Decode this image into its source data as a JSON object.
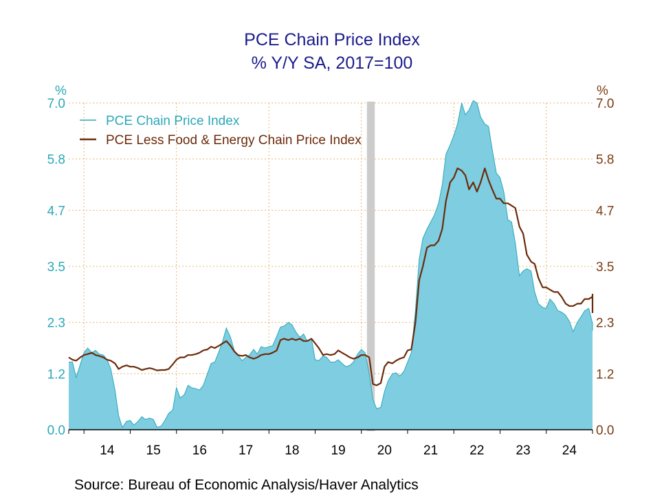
{
  "title": "PCE Chain Price Index",
  "subtitle": "% Y/Y   SA, 2017=100",
  "source": "Source:  Bureau of Economic Analysis/Haver Analytics",
  "colors": {
    "pce_fill": "#7ecde0",
    "pce_line": "#2aa7b8",
    "core_line": "#6b2a0a",
    "grid": "#e8b46a",
    "recession": "#cccccc",
    "left_axis_text": "#2aa7b8",
    "right_axis_text": "#7a3b12",
    "title": "#1a1a8c"
  },
  "chart_data": {
    "type": "area",
    "title": "PCE Chain Price Index",
    "subtitle": "% Y/Y   SA, 2017=100",
    "y_unit_left": "%",
    "y_unit_right": "%",
    "ylim": [
      0,
      7.0
    ],
    "yticks": [
      "0.0",
      "1.2",
      "2.3",
      "3.5",
      "4.7",
      "5.8",
      "7.0"
    ],
    "xlim": [
      2013.67,
      2025.0
    ],
    "xticks": [
      {
        "label": "14",
        "x": 2014.5
      },
      {
        "label": "15",
        "x": 2015.5
      },
      {
        "label": "16",
        "x": 2016.5
      },
      {
        "label": "17",
        "x": 2017.5
      },
      {
        "label": "18",
        "x": 2018.5
      },
      {
        "label": "19",
        "x": 2019.5
      },
      {
        "label": "20",
        "x": 2020.5
      },
      {
        "label": "21",
        "x": 2021.5
      },
      {
        "label": "22",
        "x": 2022.5
      },
      {
        "label": "23",
        "x": 2023.5
      },
      {
        "label": "24",
        "x": 2024.5
      }
    ],
    "recession": {
      "start": 2020.12,
      "end": 2020.29
    },
    "legend_position": "top-left",
    "grid": true,
    "series": [
      {
        "name": "PCE Chain Price Index",
        "style": "area",
        "points": [
          [
            2013.67,
            1.45
          ],
          [
            2013.75,
            1.45
          ],
          [
            2013.83,
            1.12
          ],
          [
            2013.92,
            1.4
          ],
          [
            2014.0,
            1.65
          ],
          [
            2014.08,
            1.75
          ],
          [
            2014.17,
            1.65
          ],
          [
            2014.25,
            1.7
          ],
          [
            2014.33,
            1.62
          ],
          [
            2014.42,
            1.6
          ],
          [
            2014.5,
            1.5
          ],
          [
            2014.58,
            1.3
          ],
          [
            2014.67,
            0.85
          ],
          [
            2014.75,
            0.3
          ],
          [
            2014.83,
            0.05
          ],
          [
            2014.92,
            0.18
          ],
          [
            2015.0,
            0.2
          ],
          [
            2015.08,
            0.1
          ],
          [
            2015.17,
            0.18
          ],
          [
            2015.25,
            0.28
          ],
          [
            2015.33,
            0.22
          ],
          [
            2015.42,
            0.25
          ],
          [
            2015.5,
            0.22
          ],
          [
            2015.58,
            0.05
          ],
          [
            2015.67,
            0.08
          ],
          [
            2015.75,
            0.2
          ],
          [
            2015.83,
            0.35
          ],
          [
            2015.92,
            0.42
          ],
          [
            2016.0,
            0.9
          ],
          [
            2016.08,
            0.68
          ],
          [
            2016.17,
            0.75
          ],
          [
            2016.25,
            0.95
          ],
          [
            2016.33,
            0.9
          ],
          [
            2016.42,
            0.88
          ],
          [
            2016.5,
            0.85
          ],
          [
            2016.58,
            0.95
          ],
          [
            2016.67,
            1.2
          ],
          [
            2016.75,
            1.42
          ],
          [
            2016.83,
            1.45
          ],
          [
            2016.92,
            1.68
          ],
          [
            2017.0,
            1.9
          ],
          [
            2017.08,
            2.18
          ],
          [
            2017.17,
            1.98
          ],
          [
            2017.25,
            1.7
          ],
          [
            2017.33,
            1.6
          ],
          [
            2017.42,
            1.48
          ],
          [
            2017.5,
            1.55
          ],
          [
            2017.58,
            1.6
          ],
          [
            2017.67,
            1.72
          ],
          [
            2017.75,
            1.62
          ],
          [
            2017.83,
            1.78
          ],
          [
            2017.92,
            1.75
          ],
          [
            2018.0,
            1.78
          ],
          [
            2018.08,
            1.8
          ],
          [
            2018.17,
            2.0
          ],
          [
            2018.25,
            2.2
          ],
          [
            2018.33,
            2.22
          ],
          [
            2018.42,
            2.3
          ],
          [
            2018.5,
            2.25
          ],
          [
            2018.58,
            2.1
          ],
          [
            2018.67,
            1.98
          ],
          [
            2018.75,
            2.05
          ],
          [
            2018.83,
            1.9
          ],
          [
            2018.92,
            1.95
          ],
          [
            2019.0,
            1.5
          ],
          [
            2019.08,
            1.48
          ],
          [
            2019.17,
            1.58
          ],
          [
            2019.25,
            1.55
          ],
          [
            2019.33,
            1.45
          ],
          [
            2019.42,
            1.45
          ],
          [
            2019.5,
            1.5
          ],
          [
            2019.58,
            1.42
          ],
          [
            2019.67,
            1.35
          ],
          [
            2019.75,
            1.38
          ],
          [
            2019.83,
            1.45
          ],
          [
            2019.92,
            1.62
          ],
          [
            2020.0,
            1.72
          ],
          [
            2020.08,
            1.65
          ],
          [
            2020.17,
            1.2
          ],
          [
            2020.25,
            0.65
          ],
          [
            2020.33,
            0.45
          ],
          [
            2020.42,
            0.48
          ],
          [
            2020.5,
            0.82
          ],
          [
            2020.58,
            1.05
          ],
          [
            2020.67,
            1.2
          ],
          [
            2020.75,
            1.22
          ],
          [
            2020.83,
            1.15
          ],
          [
            2020.92,
            1.25
          ],
          [
            2021.0,
            1.45
          ],
          [
            2021.08,
            1.65
          ],
          [
            2021.17,
            2.55
          ],
          [
            2021.25,
            3.65
          ],
          [
            2021.33,
            4.1
          ],
          [
            2021.42,
            4.3
          ],
          [
            2021.5,
            4.45
          ],
          [
            2021.58,
            4.6
          ],
          [
            2021.67,
            4.85
          ],
          [
            2021.75,
            5.25
          ],
          [
            2021.83,
            5.9
          ],
          [
            2021.92,
            6.1
          ],
          [
            2022.0,
            6.3
          ],
          [
            2022.08,
            6.55
          ],
          [
            2022.17,
            7.0
          ],
          [
            2022.25,
            6.75
          ],
          [
            2022.33,
            6.85
          ],
          [
            2022.42,
            7.05
          ],
          [
            2022.5,
            7.0
          ],
          [
            2022.58,
            6.7
          ],
          [
            2022.67,
            6.55
          ],
          [
            2022.75,
            6.5
          ],
          [
            2022.83,
            6.0
          ],
          [
            2022.92,
            5.5
          ],
          [
            2023.0,
            5.4
          ],
          [
            2023.08,
            5.1
          ],
          [
            2023.17,
            4.5
          ],
          [
            2023.25,
            4.45
          ],
          [
            2023.33,
            4.0
          ],
          [
            2023.42,
            3.3
          ],
          [
            2023.5,
            3.4
          ],
          [
            2023.58,
            3.45
          ],
          [
            2023.67,
            3.4
          ],
          [
            2023.75,
            2.95
          ],
          [
            2023.83,
            2.7
          ],
          [
            2023.92,
            2.62
          ],
          [
            2024.0,
            2.6
          ],
          [
            2024.08,
            2.8
          ],
          [
            2024.17,
            2.7
          ],
          [
            2024.25,
            2.55
          ],
          [
            2024.33,
            2.52
          ],
          [
            2024.42,
            2.45
          ],
          [
            2024.5,
            2.32
          ],
          [
            2024.58,
            2.1
          ],
          [
            2024.67,
            2.3
          ],
          [
            2024.75,
            2.42
          ],
          [
            2024.83,
            2.55
          ],
          [
            2024.92,
            2.6
          ],
          [
            2025.0,
            2.28
          ],
          [
            2025.08,
            2.12
          ]
        ]
      },
      {
        "name": "PCE Less Food & Energy Chain Price Index",
        "style": "line",
        "points": [
          [
            2013.67,
            1.55
          ],
          [
            2013.75,
            1.5
          ],
          [
            2013.83,
            1.48
          ],
          [
            2013.92,
            1.55
          ],
          [
            2014.0,
            1.6
          ],
          [
            2014.08,
            1.62
          ],
          [
            2014.17,
            1.65
          ],
          [
            2014.25,
            1.6
          ],
          [
            2014.33,
            1.58
          ],
          [
            2014.42,
            1.55
          ],
          [
            2014.5,
            1.5
          ],
          [
            2014.58,
            1.48
          ],
          [
            2014.67,
            1.42
          ],
          [
            2014.75,
            1.3
          ],
          [
            2014.83,
            1.35
          ],
          [
            2014.92,
            1.38
          ],
          [
            2015.0,
            1.35
          ],
          [
            2015.08,
            1.35
          ],
          [
            2015.17,
            1.32
          ],
          [
            2015.25,
            1.28
          ],
          [
            2015.33,
            1.3
          ],
          [
            2015.42,
            1.32
          ],
          [
            2015.5,
            1.3
          ],
          [
            2015.58,
            1.27
          ],
          [
            2015.67,
            1.28
          ],
          [
            2015.75,
            1.28
          ],
          [
            2015.83,
            1.3
          ],
          [
            2015.92,
            1.4
          ],
          [
            2016.0,
            1.5
          ],
          [
            2016.08,
            1.55
          ],
          [
            2016.17,
            1.55
          ],
          [
            2016.25,
            1.6
          ],
          [
            2016.33,
            1.6
          ],
          [
            2016.42,
            1.62
          ],
          [
            2016.5,
            1.65
          ],
          [
            2016.58,
            1.7
          ],
          [
            2016.67,
            1.72
          ],
          [
            2016.75,
            1.78
          ],
          [
            2016.83,
            1.75
          ],
          [
            2016.92,
            1.8
          ],
          [
            2017.0,
            1.85
          ],
          [
            2017.08,
            1.9
          ],
          [
            2017.17,
            1.8
          ],
          [
            2017.25,
            1.68
          ],
          [
            2017.33,
            1.6
          ],
          [
            2017.42,
            1.58
          ],
          [
            2017.5,
            1.6
          ],
          [
            2017.58,
            1.55
          ],
          [
            2017.67,
            1.52
          ],
          [
            2017.75,
            1.55
          ],
          [
            2017.83,
            1.6
          ],
          [
            2017.92,
            1.62
          ],
          [
            2018.0,
            1.62
          ],
          [
            2018.08,
            1.65
          ],
          [
            2018.17,
            1.7
          ],
          [
            2018.25,
            1.92
          ],
          [
            2018.33,
            1.95
          ],
          [
            2018.42,
            1.92
          ],
          [
            2018.5,
            1.95
          ],
          [
            2018.58,
            1.92
          ],
          [
            2018.67,
            1.95
          ],
          [
            2018.75,
            1.9
          ],
          [
            2018.83,
            1.9
          ],
          [
            2018.92,
            1.95
          ],
          [
            2019.0,
            1.85
          ],
          [
            2019.08,
            1.75
          ],
          [
            2019.17,
            1.6
          ],
          [
            2019.25,
            1.62
          ],
          [
            2019.33,
            1.6
          ],
          [
            2019.42,
            1.62
          ],
          [
            2019.5,
            1.7
          ],
          [
            2019.58,
            1.65
          ],
          [
            2019.67,
            1.6
          ],
          [
            2019.75,
            1.55
          ],
          [
            2019.83,
            1.52
          ],
          [
            2019.92,
            1.55
          ],
          [
            2020.0,
            1.6
          ],
          [
            2020.08,
            1.6
          ],
          [
            2020.17,
            1.55
          ],
          [
            2020.25,
            0.98
          ],
          [
            2020.33,
            0.95
          ],
          [
            2020.42,
            1.0
          ],
          [
            2020.5,
            1.35
          ],
          [
            2020.58,
            1.45
          ],
          [
            2020.67,
            1.42
          ],
          [
            2020.75,
            1.48
          ],
          [
            2020.83,
            1.52
          ],
          [
            2020.92,
            1.55
          ],
          [
            2021.0,
            1.7
          ],
          [
            2021.08,
            1.72
          ],
          [
            2021.17,
            2.3
          ],
          [
            2021.25,
            3.2
          ],
          [
            2021.33,
            3.5
          ],
          [
            2021.42,
            3.9
          ],
          [
            2021.5,
            3.95
          ],
          [
            2021.58,
            3.95
          ],
          [
            2021.67,
            4.05
          ],
          [
            2021.75,
            4.3
          ],
          [
            2021.83,
            4.9
          ],
          [
            2021.92,
            5.3
          ],
          [
            2022.0,
            5.4
          ],
          [
            2022.08,
            5.6
          ],
          [
            2022.17,
            5.55
          ],
          [
            2022.25,
            5.45
          ],
          [
            2022.33,
            5.15
          ],
          [
            2022.42,
            5.3
          ],
          [
            2022.5,
            5.1
          ],
          [
            2022.58,
            5.3
          ],
          [
            2022.67,
            5.6
          ],
          [
            2022.75,
            5.35
          ],
          [
            2022.83,
            5.15
          ],
          [
            2022.92,
            4.95
          ],
          [
            2023.0,
            4.95
          ],
          [
            2023.08,
            4.85
          ],
          [
            2023.17,
            4.85
          ],
          [
            2023.25,
            4.8
          ],
          [
            2023.33,
            4.75
          ],
          [
            2023.42,
            4.35
          ],
          [
            2023.5,
            4.2
          ],
          [
            2023.58,
            3.75
          ],
          [
            2023.67,
            3.6
          ],
          [
            2023.75,
            3.55
          ],
          [
            2023.83,
            3.25
          ],
          [
            2023.92,
            3.05
          ],
          [
            2024.0,
            3.05
          ],
          [
            2024.08,
            3.0
          ],
          [
            2024.17,
            2.95
          ],
          [
            2024.25,
            2.95
          ],
          [
            2024.33,
            2.85
          ],
          [
            2024.42,
            2.7
          ],
          [
            2024.5,
            2.65
          ],
          [
            2024.58,
            2.65
          ],
          [
            2024.67,
            2.7
          ],
          [
            2024.75,
            2.7
          ],
          [
            2024.83,
            2.8
          ],
          [
            2024.92,
            2.8
          ],
          [
            2025.0,
            2.85
          ],
          [
            2025.08,
            2.7
          ],
          [
            2025.17,
            2.9
          ],
          [
            2025.25,
            2.5
          ]
        ]
      }
    ]
  }
}
